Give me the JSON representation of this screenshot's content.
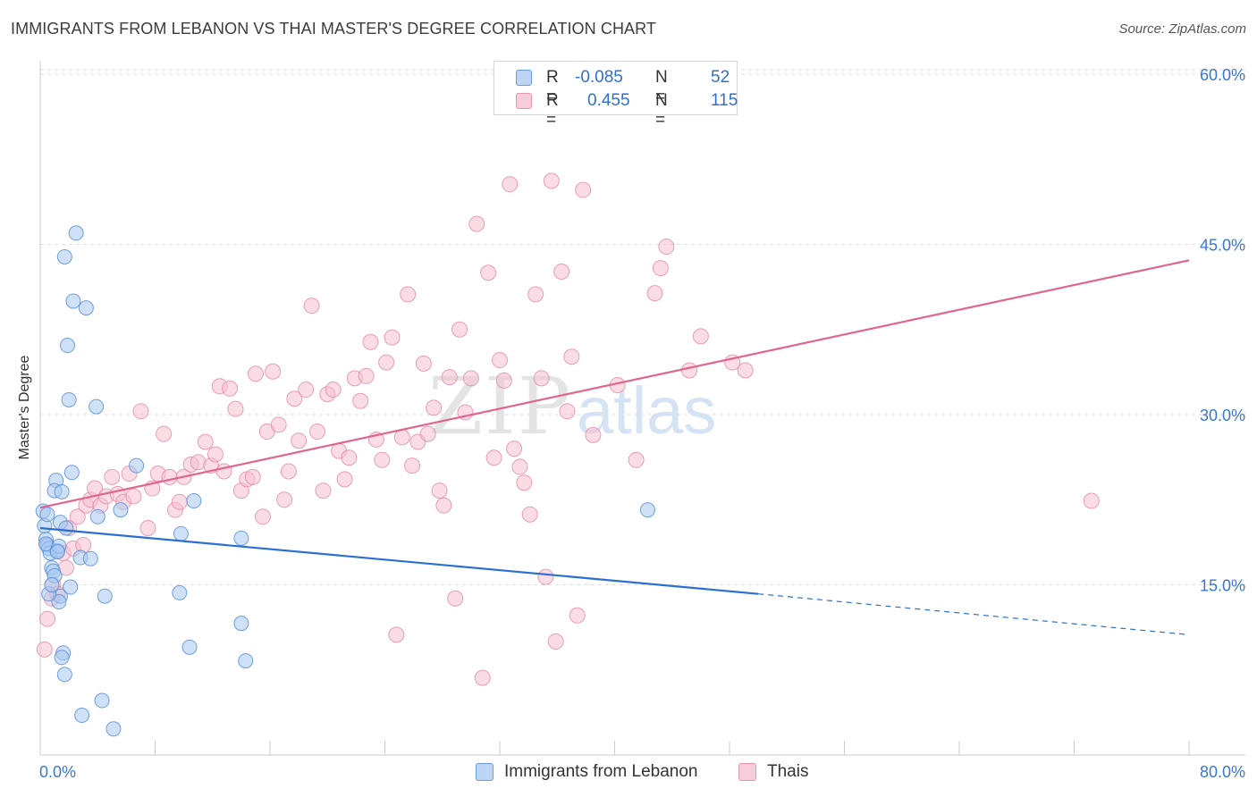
{
  "header": {
    "title": "IMMIGRANTS FROM LEBANON VS THAI MASTER'S DEGREE CORRELATION CHART",
    "source": "Source: ZipAtlas.com"
  },
  "watermark": {
    "zip": "ZIP",
    "atlas": "atlas"
  },
  "legend": {
    "rows": [
      {
        "r_label": "R =",
        "r_value": "-0.085",
        "n_label": "N =",
        "n_value": "52"
      },
      {
        "r_label": "R =",
        "r_value": "0.455",
        "n_label": "N =",
        "n_value": "115"
      }
    ]
  },
  "colors": {
    "lebanon_fill": "#a8c8f0",
    "lebanon_stroke": "#5b8fd8",
    "lebanon_line": "#2a6fd1",
    "thai_fill": "#f6bfd0",
    "thai_stroke": "#e58aa8",
    "thai_line": "#e0668f",
    "axis_text": "#3a78d0",
    "grid": "#dddddd"
  },
  "chart_data": {
    "type": "scatter",
    "title": "IMMIGRANTS FROM LEBANON VS THAI MASTER'S DEGREE CORRELATION CHART",
    "xlabel": "",
    "ylabel": "Master's Degree",
    "xlim": [
      0,
      80
    ],
    "ylim": [
      0,
      60
    ],
    "x_tick_labels": [
      "0.0%",
      "80.0%"
    ],
    "y_ticks": [
      15,
      30,
      45,
      60
    ],
    "y_tick_labels": [
      "15.0%",
      "30.0%",
      "45.0%",
      "60.0%"
    ],
    "grid": true,
    "legend_position": "bottom",
    "series": [
      {
        "name": "Immigrants from Lebanon",
        "r": -0.085,
        "n": 52,
        "trend": {
          "x_start": 0,
          "y_start": 20.0,
          "x_solid_end": 50,
          "y_solid_end": 14.2,
          "x_dash_end": 80,
          "y_dash_end": 10.6
        },
        "points": [
          [
            0.2,
            21.5
          ],
          [
            0.3,
            20.2
          ],
          [
            0.4,
            19.0
          ],
          [
            0.5,
            18.5
          ],
          [
            0.6,
            18.2
          ],
          [
            0.7,
            17.8
          ],
          [
            0.4,
            18.6
          ],
          [
            0.5,
            21.2
          ],
          [
            0.8,
            16.5
          ],
          [
            0.9,
            16.2
          ],
          [
            1.0,
            15.8
          ],
          [
            1.1,
            24.2
          ],
          [
            1.0,
            23.3
          ],
          [
            1.2,
            18.0
          ],
          [
            1.3,
            18.4
          ],
          [
            1.4,
            14.0
          ],
          [
            1.3,
            13.5
          ],
          [
            1.4,
            20.5
          ],
          [
            1.5,
            23.2
          ],
          [
            1.6,
            9.0
          ],
          [
            1.5,
            8.6
          ],
          [
            1.7,
            7.1
          ],
          [
            1.8,
            20.0
          ],
          [
            1.9,
            36.1
          ],
          [
            2.0,
            31.3
          ],
          [
            2.1,
            14.8
          ],
          [
            2.2,
            24.9
          ],
          [
            2.3,
            40.0
          ],
          [
            2.5,
            46.0
          ],
          [
            1.7,
            43.9
          ],
          [
            2.8,
            17.4
          ],
          [
            2.9,
            3.5
          ],
          [
            3.2,
            39.4
          ],
          [
            3.5,
            17.3
          ],
          [
            3.9,
            30.7
          ],
          [
            4.0,
            21.0
          ],
          [
            4.3,
            4.8
          ],
          [
            4.5,
            14.0
          ],
          [
            5.1,
            2.3
          ],
          [
            6.7,
            25.5
          ],
          [
            5.6,
            21.6
          ],
          [
            9.8,
            19.5
          ],
          [
            9.7,
            14.3
          ],
          [
            10.4,
            9.5
          ],
          [
            10.7,
            22.4
          ],
          [
            14.0,
            11.6
          ],
          [
            14.3,
            8.3
          ],
          [
            14.0,
            19.1
          ],
          [
            42.3,
            21.6
          ],
          [
            0.6,
            14.2
          ],
          [
            1.2,
            17.9
          ],
          [
            0.8,
            15.0
          ]
        ]
      },
      {
        "name": "Thais",
        "r": 0.455,
        "n": 115,
        "trend": {
          "x_start": 0,
          "y_start": 21.8,
          "x_end": 80,
          "y_end": 43.6
        },
        "points": [
          [
            0.3,
            9.3
          ],
          [
            0.5,
            12.0
          ],
          [
            0.8,
            13.8
          ],
          [
            0.9,
            15.0
          ],
          [
            1.2,
            14.2
          ],
          [
            1.6,
            17.8
          ],
          [
            1.8,
            16.5
          ],
          [
            2.0,
            20.0
          ],
          [
            2.3,
            18.2
          ],
          [
            2.6,
            21.0
          ],
          [
            3.0,
            18.5
          ],
          [
            3.2,
            22.0
          ],
          [
            3.5,
            22.5
          ],
          [
            3.8,
            23.5
          ],
          [
            4.2,
            22.0
          ],
          [
            4.6,
            22.8
          ],
          [
            5.0,
            24.5
          ],
          [
            5.4,
            23.0
          ],
          [
            5.8,
            22.3
          ],
          [
            6.2,
            24.8
          ],
          [
            6.5,
            22.8
          ],
          [
            7.0,
            30.3
          ],
          [
            7.5,
            20.0
          ],
          [
            7.8,
            23.5
          ],
          [
            8.2,
            24.8
          ],
          [
            8.6,
            28.3
          ],
          [
            9.0,
            24.5
          ],
          [
            9.4,
            21.6
          ],
          [
            9.7,
            22.3
          ],
          [
            10.0,
            24.5
          ],
          [
            10.5,
            25.6
          ],
          [
            11.0,
            25.8
          ],
          [
            11.5,
            27.6
          ],
          [
            11.9,
            25.5
          ],
          [
            12.2,
            26.5
          ],
          [
            12.5,
            32.5
          ],
          [
            12.8,
            25.0
          ],
          [
            13.2,
            32.3
          ],
          [
            13.6,
            30.5
          ],
          [
            14.0,
            23.3
          ],
          [
            14.4,
            24.3
          ],
          [
            14.8,
            24.5
          ],
          [
            15.0,
            33.6
          ],
          [
            15.5,
            21.0
          ],
          [
            15.8,
            28.5
          ],
          [
            16.2,
            33.8
          ],
          [
            16.6,
            29.1
          ],
          [
            17.0,
            22.5
          ],
          [
            17.3,
            25.0
          ],
          [
            17.7,
            31.4
          ],
          [
            18.0,
            27.7
          ],
          [
            18.5,
            32.2
          ],
          [
            18.9,
            39.6
          ],
          [
            19.3,
            28.5
          ],
          [
            19.7,
            23.3
          ],
          [
            20.0,
            31.8
          ],
          [
            20.4,
            32.2
          ],
          [
            20.8,
            26.8
          ],
          [
            21.2,
            24.3
          ],
          [
            21.5,
            26.2
          ],
          [
            21.9,
            33.2
          ],
          [
            22.3,
            31.2
          ],
          [
            22.7,
            33.4
          ],
          [
            23.0,
            36.4
          ],
          [
            23.4,
            27.8
          ],
          [
            23.8,
            26.0
          ],
          [
            24.1,
            34.6
          ],
          [
            24.5,
            36.8
          ],
          [
            24.8,
            10.6
          ],
          [
            25.2,
            28.0
          ],
          [
            25.6,
            40.6
          ],
          [
            25.9,
            25.5
          ],
          [
            26.3,
            27.6
          ],
          [
            26.7,
            34.5
          ],
          [
            27.0,
            28.3
          ],
          [
            27.4,
            30.6
          ],
          [
            27.8,
            23.3
          ],
          [
            28.1,
            22.0
          ],
          [
            28.5,
            33.3
          ],
          [
            28.9,
            13.8
          ],
          [
            29.2,
            37.5
          ],
          [
            29.6,
            30.2
          ],
          [
            30.0,
            33.2
          ],
          [
            30.4,
            46.8
          ],
          [
            30.8,
            6.8
          ],
          [
            31.2,
            42.5
          ],
          [
            31.6,
            26.2
          ],
          [
            32.0,
            34.8
          ],
          [
            32.3,
            33.0
          ],
          [
            32.7,
            50.3
          ],
          [
            33.0,
            27.0
          ],
          [
            33.4,
            25.4
          ],
          [
            33.7,
            24.0
          ],
          [
            34.1,
            21.2
          ],
          [
            34.5,
            40.6
          ],
          [
            34.9,
            33.2
          ],
          [
            35.2,
            15.7
          ],
          [
            35.6,
            50.6
          ],
          [
            35.9,
            10.0
          ],
          [
            36.3,
            42.6
          ],
          [
            36.7,
            30.3
          ],
          [
            37.0,
            35.1
          ],
          [
            37.4,
            12.3
          ],
          [
            37.8,
            49.8
          ],
          [
            38.5,
            28.2
          ],
          [
            40.2,
            32.6
          ],
          [
            41.5,
            26.0
          ],
          [
            42.8,
            40.7
          ],
          [
            43.2,
            42.9
          ],
          [
            43.6,
            44.8
          ],
          [
            45.2,
            33.9
          ],
          [
            46.0,
            36.9
          ],
          [
            48.2,
            34.6
          ],
          [
            49.1,
            33.9
          ],
          [
            73.2,
            22.4
          ]
        ]
      }
    ]
  },
  "bottom_legend": {
    "items": [
      {
        "label": "Immigrants from Lebanon"
      },
      {
        "label": "Thais"
      }
    ]
  }
}
